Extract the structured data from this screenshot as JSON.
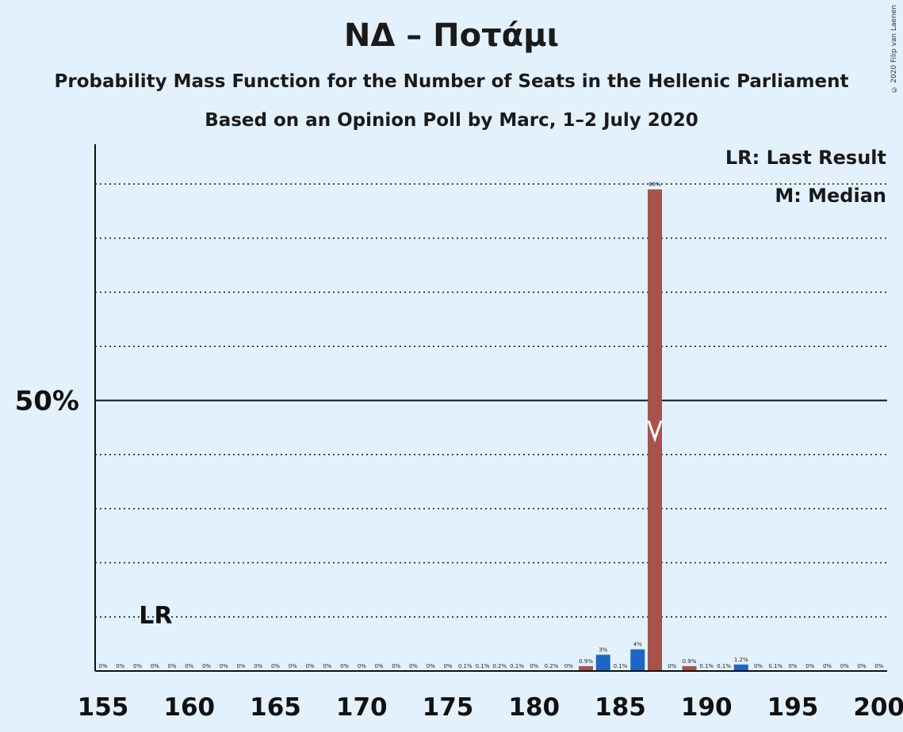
{
  "title": "ΝΔ – Ποτάμι",
  "subtitle1": "Probability Mass Function for the Number of Seats in the Hellenic Parliament",
  "subtitle2": "Based on an Opinion Poll by Marc, 1–2 July 2020",
  "copyright": "© 2020 Filip van Laenen",
  "legend": {
    "last_result": "LR: Last Result",
    "median": "M: Median"
  },
  "colors": {
    "background": "#e3f1fd",
    "bar_red": "#a6534b",
    "bar_blue": "#1f65c3"
  },
  "chart_data": {
    "type": "bar",
    "x_axis_ticks": [
      155,
      160,
      165,
      170,
      175,
      180,
      185,
      190,
      195,
      200
    ],
    "y_axis_ticks": [
      {
        "value": 50,
        "label": "50%"
      }
    ],
    "xlim": [
      155,
      200
    ],
    "ylim": [
      0,
      90
    ],
    "grid": "dotted horizontal lines every 10%, solid line at 50%",
    "last_result_seat": 158,
    "last_result_label": "LR",
    "median_seat": 187,
    "median_label": "M",
    "bars": [
      {
        "seat": 155,
        "value": 0,
        "label": "0%",
        "color": "red"
      },
      {
        "seat": 156,
        "value": 0,
        "label": "0%",
        "color": "red"
      },
      {
        "seat": 157,
        "value": 0,
        "label": "0%",
        "color": "red"
      },
      {
        "seat": 158,
        "value": 0,
        "label": "0%",
        "color": "red"
      },
      {
        "seat": 159,
        "value": 0,
        "label": "0%",
        "color": "red"
      },
      {
        "seat": 160,
        "value": 0,
        "label": "0%",
        "color": "red"
      },
      {
        "seat": 161,
        "value": 0,
        "label": "0%",
        "color": "red"
      },
      {
        "seat": 162,
        "value": 0,
        "label": "0%",
        "color": "red"
      },
      {
        "seat": 163,
        "value": 0,
        "label": "0%",
        "color": "red"
      },
      {
        "seat": 164,
        "value": 0,
        "label": "0%",
        "color": "red"
      },
      {
        "seat": 165,
        "value": 0,
        "label": "0%",
        "color": "red"
      },
      {
        "seat": 166,
        "value": 0,
        "label": "0%",
        "color": "red"
      },
      {
        "seat": 167,
        "value": 0,
        "label": "0%",
        "color": "red"
      },
      {
        "seat": 168,
        "value": 0,
        "label": "0%",
        "color": "red"
      },
      {
        "seat": 169,
        "value": 0,
        "label": "0%",
        "color": "red"
      },
      {
        "seat": 170,
        "value": 0,
        "label": "0%",
        "color": "red"
      },
      {
        "seat": 171,
        "value": 0,
        "label": "0%",
        "color": "red"
      },
      {
        "seat": 172,
        "value": 0,
        "label": "0%",
        "color": "red"
      },
      {
        "seat": 173,
        "value": 0,
        "label": "0%",
        "color": "red"
      },
      {
        "seat": 174,
        "value": 0,
        "label": "0%",
        "color": "red"
      },
      {
        "seat": 175,
        "value": 0,
        "label": "0%",
        "color": "red"
      },
      {
        "seat": 176,
        "value": 0.1,
        "label": "0.1%",
        "color": "blue"
      },
      {
        "seat": 177,
        "value": 0.1,
        "label": "0.1%",
        "color": "red"
      },
      {
        "seat": 178,
        "value": 0.2,
        "label": "0.2%",
        "color": "blue"
      },
      {
        "seat": 179,
        "value": 0.1,
        "label": "0.1%",
        "color": "red"
      },
      {
        "seat": 180,
        "value": 0,
        "label": "0%",
        "color": "red"
      },
      {
        "seat": 181,
        "value": 0.2,
        "label": "0.2%",
        "color": "blue"
      },
      {
        "seat": 182,
        "value": 0,
        "label": "0%",
        "color": "red"
      },
      {
        "seat": 183,
        "value": 0.9,
        "label": "0.9%",
        "color": "red"
      },
      {
        "seat": 184,
        "value": 3,
        "label": "3%",
        "color": "blue"
      },
      {
        "seat": 185,
        "value": 0.1,
        "label": "0.1%",
        "color": "red"
      },
      {
        "seat": 186,
        "value": 4,
        "label": "4%",
        "color": "blue"
      },
      {
        "seat": 187,
        "value": 89,
        "label": "89%",
        "color": "red"
      },
      {
        "seat": 188,
        "value": 0,
        "label": "0%",
        "color": "red"
      },
      {
        "seat": 189,
        "value": 0.9,
        "label": "0.9%",
        "color": "red"
      },
      {
        "seat": 190,
        "value": 0.1,
        "label": "0.1%",
        "color": "blue"
      },
      {
        "seat": 191,
        "value": 0.1,
        "label": "0.1%",
        "color": "red"
      },
      {
        "seat": 192,
        "value": 1.2,
        "label": "1.2%",
        "color": "blue"
      },
      {
        "seat": 193,
        "value": 0,
        "label": "0%",
        "color": "red"
      },
      {
        "seat": 194,
        "value": 0.1,
        "label": "0.1%",
        "color": "blue"
      },
      {
        "seat": 195,
        "value": 0,
        "label": "0%",
        "color": "red"
      },
      {
        "seat": 196,
        "value": 0,
        "label": "0%",
        "color": "red"
      },
      {
        "seat": 197,
        "value": 0,
        "label": "0%",
        "color": "red"
      },
      {
        "seat": 198,
        "value": 0,
        "label": "0%",
        "color": "red"
      },
      {
        "seat": 199,
        "value": 0,
        "label": "0%",
        "color": "red"
      },
      {
        "seat": 200,
        "value": 0,
        "label": "0%",
        "color": "red"
      }
    ]
  }
}
